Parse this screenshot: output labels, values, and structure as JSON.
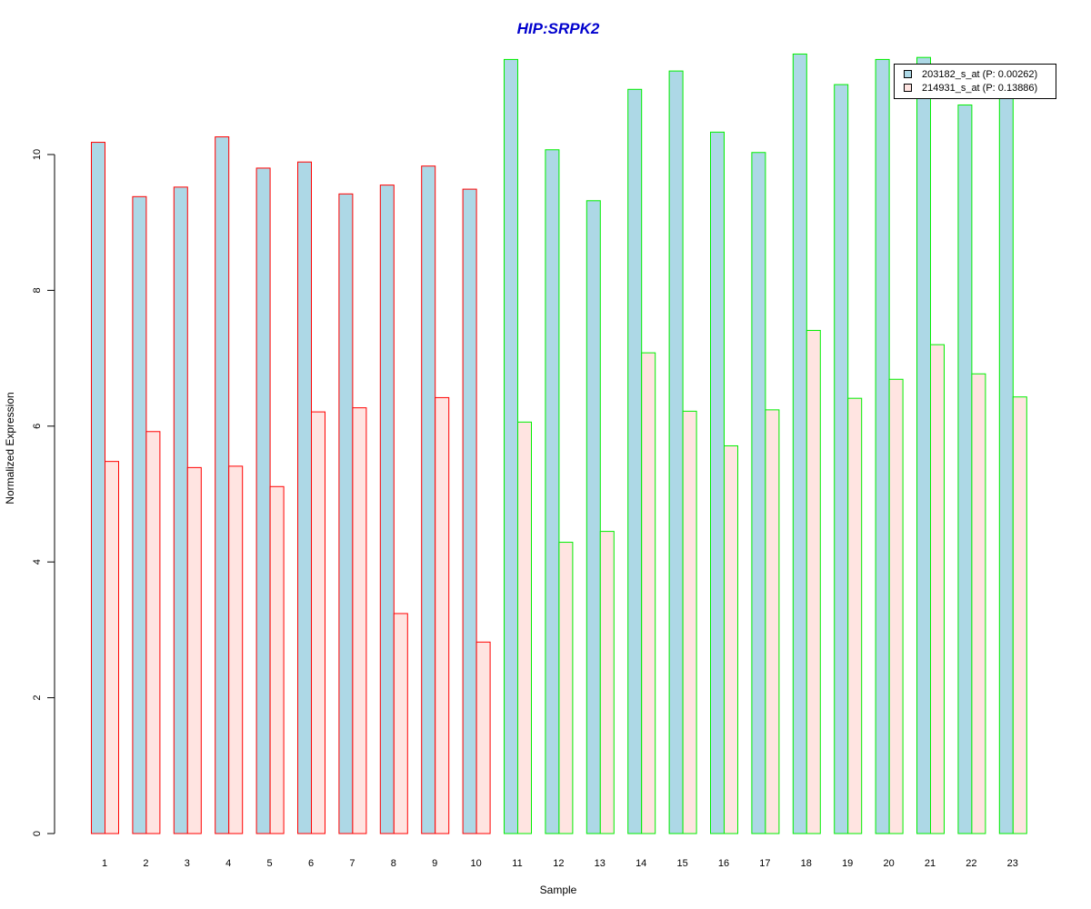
{
  "chart_data": {
    "type": "bar",
    "title": "HIP:SRPK2",
    "xlabel": "Sample",
    "ylabel": "Normalized Expression",
    "categories": [
      "1",
      "2",
      "3",
      "4",
      "5",
      "6",
      "7",
      "8",
      "9",
      "10",
      "11",
      "12",
      "13",
      "14",
      "15",
      "16",
      "17",
      "18",
      "19",
      "20",
      "21",
      "22",
      "23"
    ],
    "ylim": [
      0,
      11.5
    ],
    "yticks": [
      0,
      2,
      4,
      6,
      8,
      10
    ],
    "series": [
      {
        "name": "203182_s_at (P: 0.00262)",
        "fill": "#add8e6",
        "values": [
          10.18,
          9.38,
          9.52,
          10.26,
          9.8,
          9.89,
          9.42,
          9.55,
          9.83,
          9.49,
          11.4,
          10.07,
          9.32,
          10.96,
          11.23,
          10.33,
          10.03,
          11.48,
          11.03,
          11.4,
          11.43,
          10.73,
          10.88
        ]
      },
      {
        "name": "214931_s_at (P: 0.13886)",
        "fill": "#ffe4e1",
        "values": [
          5.48,
          5.92,
          5.39,
          5.41,
          5.11,
          6.21,
          6.27,
          3.24,
          6.42,
          2.82,
          6.06,
          4.29,
          4.45,
          7.08,
          6.22,
          5.71,
          6.24,
          7.41,
          6.41,
          6.69,
          7.2,
          6.77,
          6.43
        ]
      }
    ],
    "group_border_colors": [
      "#ff0000",
      "#ff0000",
      "#ff0000",
      "#ff0000",
      "#ff0000",
      "#ff0000",
      "#ff0000",
      "#ff0000",
      "#ff0000",
      "#ff0000",
      "#00ee00",
      "#00ee00",
      "#00ee00",
      "#00ee00",
      "#00ee00",
      "#00ee00",
      "#00ee00",
      "#00ee00",
      "#00ee00",
      "#00ee00",
      "#00ee00",
      "#00ee00",
      "#00ee00"
    ],
    "legend_position": "top-right",
    "grid": false
  }
}
